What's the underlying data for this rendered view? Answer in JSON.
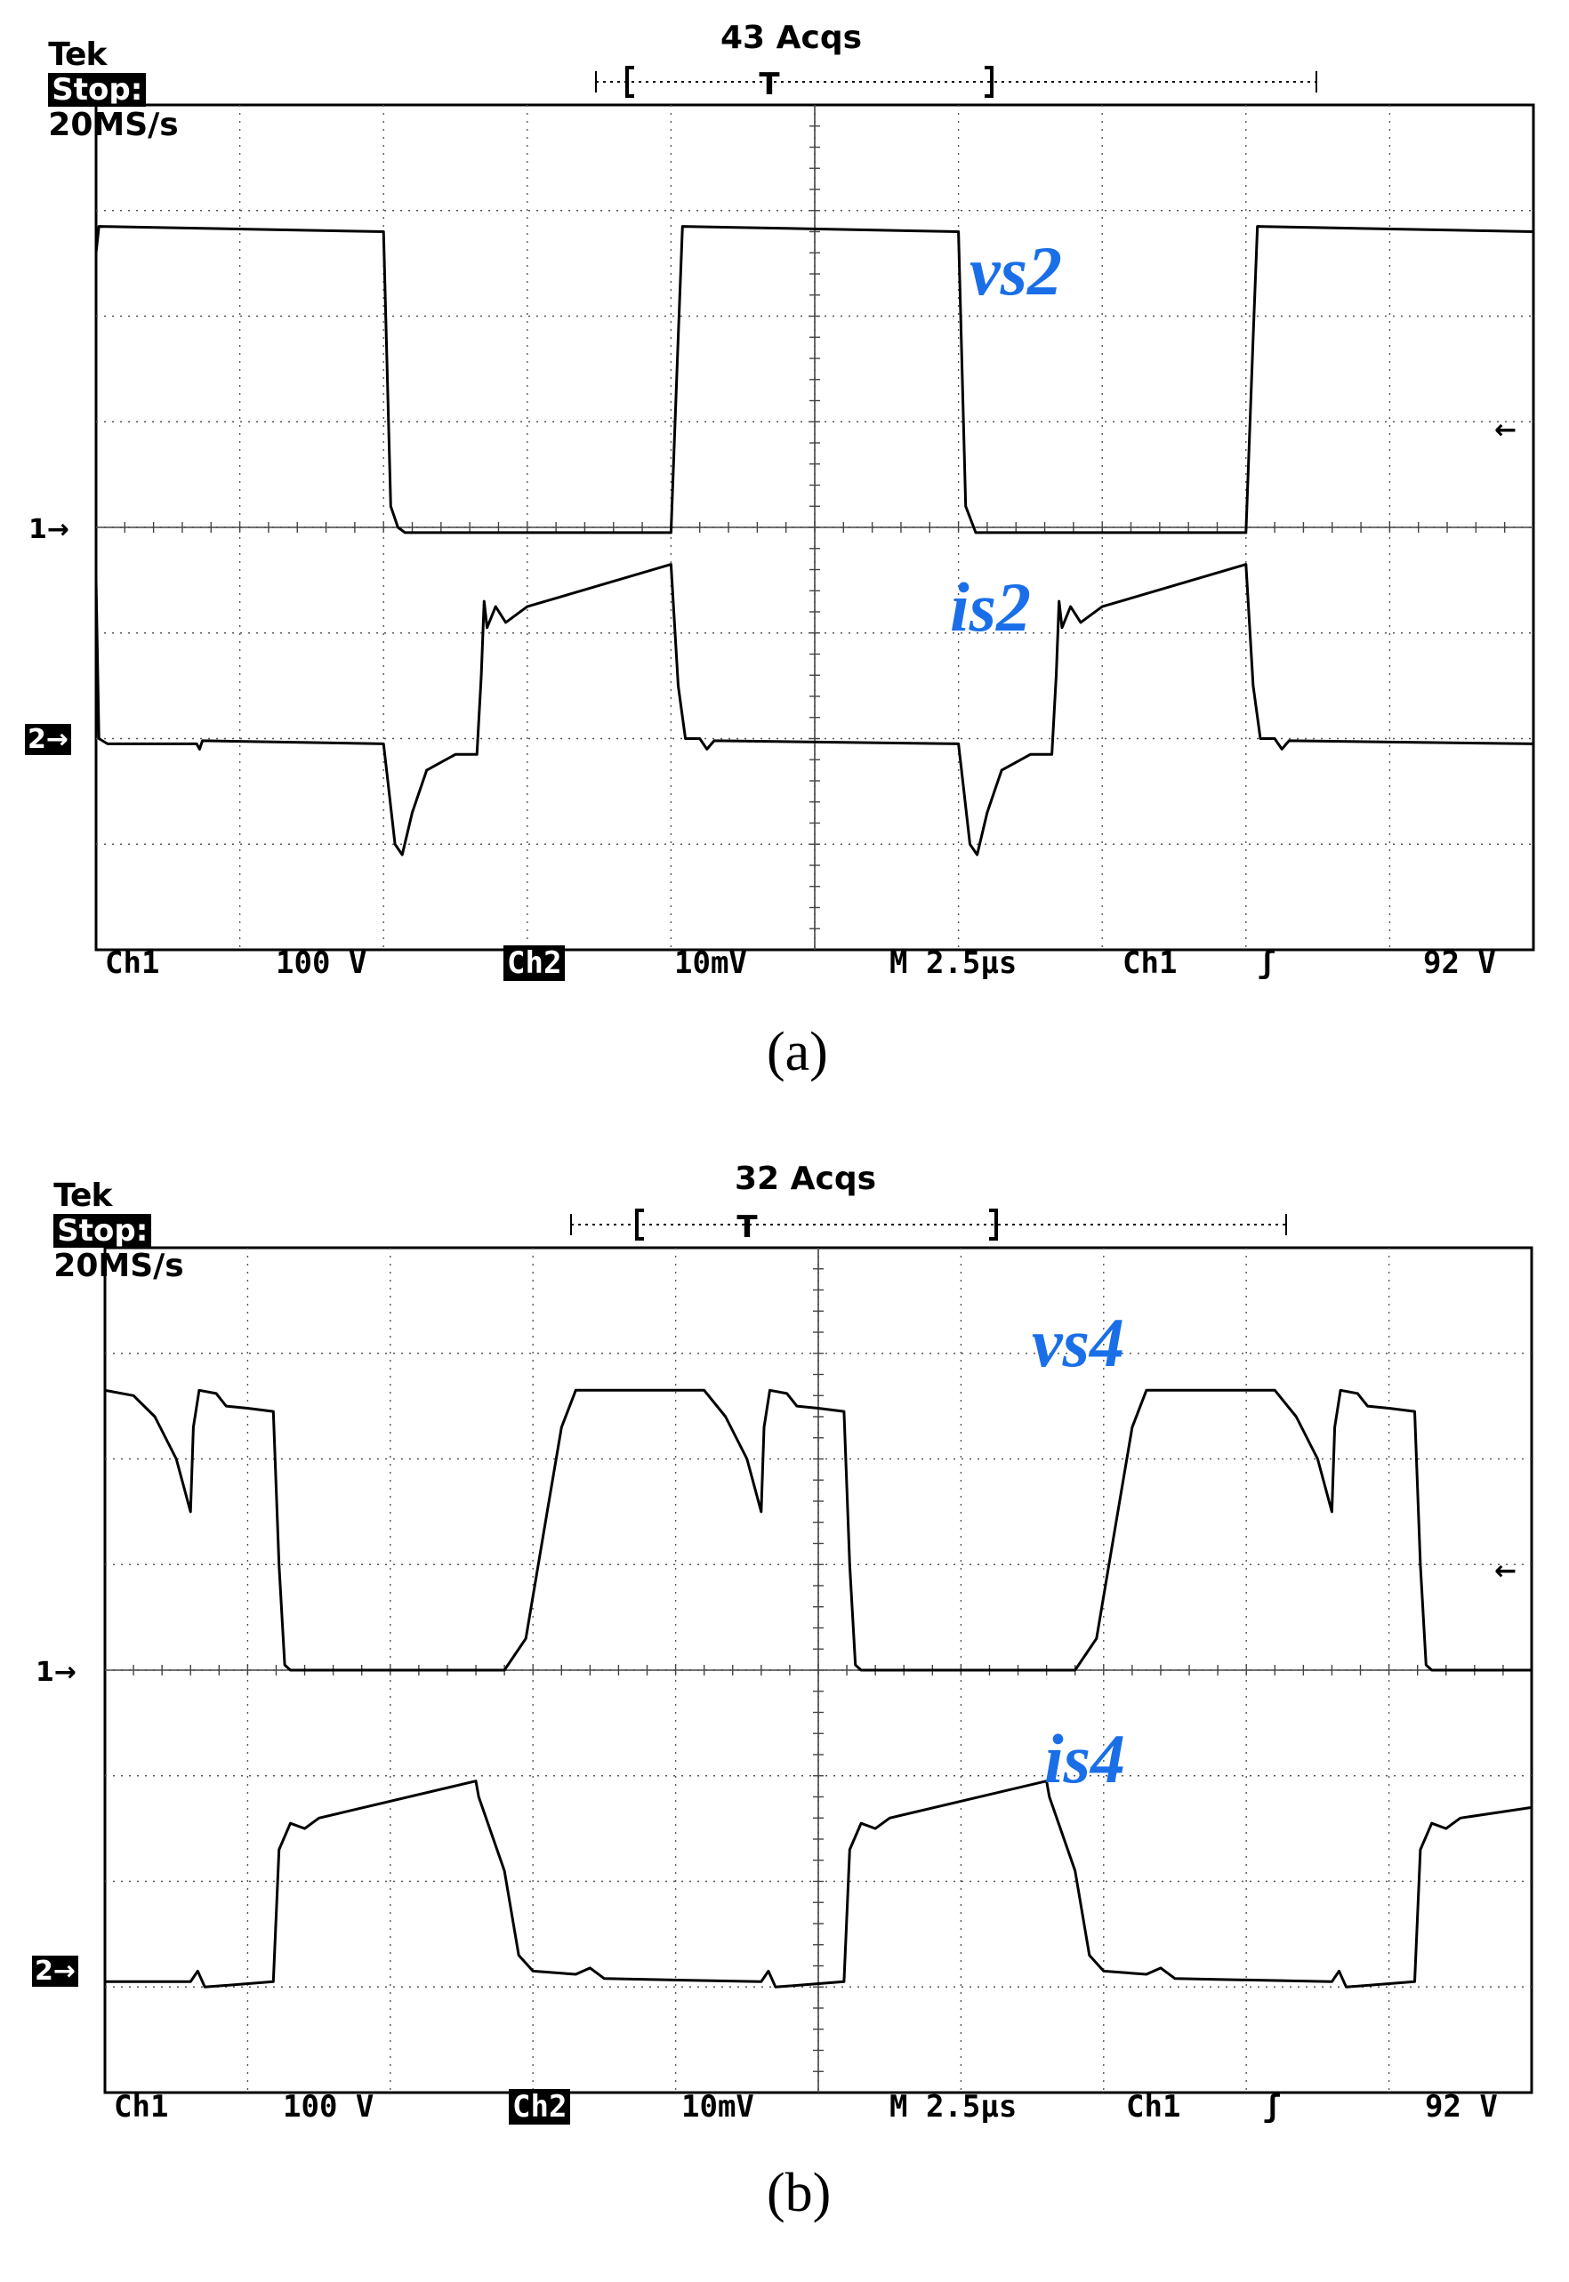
{
  "chart_data": [
    {
      "type": "line",
      "panel_label": "(a)",
      "header": {
        "brand": "Tek",
        "state": "Stop:",
        "sample_rate": "20MS/s",
        "acquisitions": "43 Acqs",
        "trigger_marker": "T"
      },
      "footer": {
        "ch1": "Ch1",
        "ch1_scale": "100 V",
        "ch2": "Ch2",
        "ch2_scale": "10mV",
        "timebase": "M 2.5µs",
        "trig_src": "Ch1",
        "trig_slope": "ʃ",
        "trig_level": "92 V"
      },
      "markers": {
        "ch1": "1→",
        "ch2": "2→",
        "trig_level": "←"
      },
      "grid": {
        "x_divisions": 10,
        "y_divisions": 8
      },
      "x_unit": "div",
      "y_unit": "div",
      "xlim": [
        0,
        10
      ],
      "ylim": [
        0,
        8
      ],
      "series": [
        {
          "name": "vs2",
          "color": "#000000",
          "points": [
            [
              0,
              6.6
            ],
            [
              0.02,
              6.85
            ],
            [
              2.0,
              6.8
            ],
            [
              2.05,
              4.2
            ],
            [
              2.1,
              4.0
            ],
            [
              2.15,
              3.95
            ],
            [
              4.0,
              3.95
            ],
            [
              4.05,
              5.8
            ],
            [
              4.08,
              6.85
            ],
            [
              6.0,
              6.8
            ],
            [
              6.05,
              4.2
            ],
            [
              6.12,
              3.95
            ],
            [
              8.0,
              3.95
            ],
            [
              8.05,
              5.8
            ],
            [
              8.08,
              6.85
            ],
            [
              10.0,
              6.8
            ]
          ]
        },
        {
          "name": "is2",
          "color": "#000000",
          "points": [
            [
              0,
              3.5
            ],
            [
              0.02,
              2.0
            ],
            [
              0.08,
              1.95
            ],
            [
              0.7,
              1.95
            ],
            [
              0.72,
              1.9
            ],
            [
              0.74,
              1.98
            ],
            [
              2.0,
              1.95
            ],
            [
              2.03,
              1.6
            ],
            [
              2.08,
              1.0
            ],
            [
              2.13,
              0.9
            ],
            [
              2.2,
              1.3
            ],
            [
              2.3,
              1.7
            ],
            [
              2.5,
              1.85
            ],
            [
              2.65,
              1.85
            ],
            [
              2.68,
              2.6
            ],
            [
              2.7,
              3.3
            ],
            [
              2.72,
              3.05
            ],
            [
              2.78,
              3.25
            ],
            [
              2.85,
              3.1
            ],
            [
              3.0,
              3.25
            ],
            [
              4.0,
              3.65
            ],
            [
              4.05,
              2.5
            ],
            [
              4.1,
              2.0
            ],
            [
              4.2,
              2.0
            ],
            [
              4.25,
              1.9
            ],
            [
              4.3,
              1.98
            ],
            [
              6.0,
              1.95
            ],
            [
              6.03,
              1.6
            ],
            [
              6.08,
              1.0
            ],
            [
              6.13,
              0.9
            ],
            [
              6.2,
              1.3
            ],
            [
              6.3,
              1.7
            ],
            [
              6.5,
              1.85
            ],
            [
              6.65,
              1.85
            ],
            [
              6.68,
              2.6
            ],
            [
              6.7,
              3.3
            ],
            [
              6.72,
              3.05
            ],
            [
              6.78,
              3.25
            ],
            [
              6.85,
              3.1
            ],
            [
              7.0,
              3.25
            ],
            [
              8.0,
              3.65
            ],
            [
              8.05,
              2.5
            ],
            [
              8.1,
              2.0
            ],
            [
              8.2,
              2.0
            ],
            [
              8.25,
              1.9
            ],
            [
              8.3,
              1.98
            ],
            [
              10.0,
              1.95
            ]
          ]
        }
      ]
    },
    {
      "type": "line",
      "panel_label": "(b)",
      "header": {
        "brand": "Tek",
        "state": "Stop:",
        "sample_rate": "20MS/s",
        "acquisitions": "32 Acqs",
        "trigger_marker": "T"
      },
      "footer": {
        "ch1": "Ch1",
        "ch1_scale": "100 V",
        "ch2": "Ch2",
        "ch2_scale": "10mV",
        "timebase": "M 2.5µs",
        "trig_src": "Ch1",
        "trig_slope": "ʃ",
        "trig_level": "92 V"
      },
      "markers": {
        "ch1": "1→",
        "ch2": "2→",
        "trig_level": "←"
      },
      "grid": {
        "x_divisions": 10,
        "y_divisions": 8
      },
      "x_unit": "div",
      "y_unit": "div",
      "xlim": [
        0,
        10
      ],
      "ylim": [
        0,
        8
      ],
      "series": [
        {
          "name": "vs4",
          "color": "#000000",
          "points": [
            [
              0,
              6.65
            ],
            [
              0.2,
              6.6
            ],
            [
              0.35,
              6.4
            ],
            [
              0.5,
              6.0
            ],
            [
              0.6,
              5.5
            ],
            [
              0.62,
              6.3
            ],
            [
              0.66,
              6.65
            ],
            [
              0.78,
              6.62
            ],
            [
              0.85,
              6.5
            ],
            [
              1.0,
              6.48
            ],
            [
              1.18,
              6.45
            ],
            [
              1.22,
              5.0
            ],
            [
              1.26,
              4.05
            ],
            [
              1.3,
              4.0
            ],
            [
              2.8,
              4.0
            ],
            [
              2.95,
              4.3
            ],
            [
              3.1,
              5.5
            ],
            [
              3.2,
              6.3
            ],
            [
              3.3,
              6.65
            ],
            [
              4.2,
              6.65
            ],
            [
              4.35,
              6.4
            ],
            [
              4.5,
              6.0
            ],
            [
              4.6,
              5.5
            ],
            [
              4.62,
              6.3
            ],
            [
              4.66,
              6.65
            ],
            [
              4.78,
              6.62
            ],
            [
              4.85,
              6.5
            ],
            [
              5.0,
              6.48
            ],
            [
              5.18,
              6.45
            ],
            [
              5.22,
              5.0
            ],
            [
              5.26,
              4.05
            ],
            [
              5.3,
              4.0
            ],
            [
              6.8,
              4.0
            ],
            [
              6.95,
              4.3
            ],
            [
              7.1,
              5.5
            ],
            [
              7.2,
              6.3
            ],
            [
              7.3,
              6.65
            ],
            [
              8.2,
              6.65
            ],
            [
              8.35,
              6.4
            ],
            [
              8.5,
              6.0
            ],
            [
              8.6,
              5.5
            ],
            [
              8.62,
              6.3
            ],
            [
              8.66,
              6.65
            ],
            [
              8.78,
              6.62
            ],
            [
              8.85,
              6.5
            ],
            [
              9.0,
              6.48
            ],
            [
              9.18,
              6.45
            ],
            [
              9.22,
              5.0
            ],
            [
              9.26,
              4.05
            ],
            [
              9.3,
              4.0
            ],
            [
              10.0,
              4.0
            ]
          ]
        },
        {
          "name": "is4",
          "color": "#000000",
          "points": [
            [
              0,
              1.05
            ],
            [
              0.6,
              1.05
            ],
            [
              0.65,
              1.15
            ],
            [
              0.7,
              1.0
            ],
            [
              1.18,
              1.05
            ],
            [
              1.22,
              2.3
            ],
            [
              1.3,
              2.55
            ],
            [
              1.4,
              2.5
            ],
            [
              1.5,
              2.6
            ],
            [
              2.6,
              2.95
            ],
            [
              2.62,
              2.8
            ],
            [
              2.8,
              2.1
            ],
            [
              2.9,
              1.3
            ],
            [
              3.0,
              1.15
            ],
            [
              3.3,
              1.12
            ],
            [
              3.4,
              1.18
            ],
            [
              3.5,
              1.08
            ],
            [
              4.6,
              1.05
            ],
            [
              4.65,
              1.15
            ],
            [
              4.7,
              1.0
            ],
            [
              5.18,
              1.05
            ],
            [
              5.22,
              2.3
            ],
            [
              5.3,
              2.55
            ],
            [
              5.4,
              2.5
            ],
            [
              5.5,
              2.6
            ],
            [
              6.6,
              2.95
            ],
            [
              6.62,
              2.8
            ],
            [
              6.8,
              2.1
            ],
            [
              6.9,
              1.3
            ],
            [
              7.0,
              1.15
            ],
            [
              7.3,
              1.12
            ],
            [
              7.4,
              1.18
            ],
            [
              7.5,
              1.08
            ],
            [
              8.6,
              1.05
            ],
            [
              8.65,
              1.15
            ],
            [
              8.7,
              1.0
            ],
            [
              9.18,
              1.05
            ],
            [
              9.22,
              2.3
            ],
            [
              9.3,
              2.55
            ],
            [
              9.4,
              2.5
            ],
            [
              9.5,
              2.6
            ],
            [
              10.0,
              2.7
            ]
          ]
        }
      ]
    }
  ]
}
